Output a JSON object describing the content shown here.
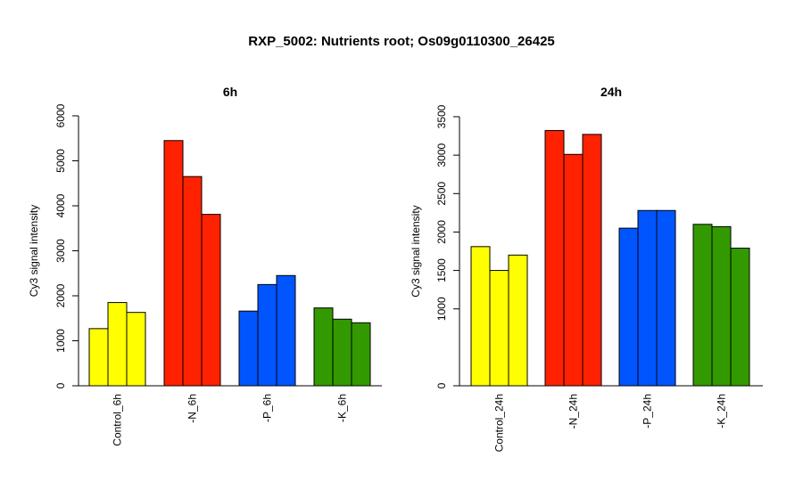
{
  "figure": {
    "title": "RXP_5002: Nutrients root; Os09g0110300_26425"
  },
  "chart_data": [
    {
      "type": "bar",
      "title": "6h",
      "xlabel": "",
      "ylabel": "Cy3 signal intensity",
      "ylim": [
        0,
        6000
      ],
      "yticks": [
        0,
        1000,
        2000,
        3000,
        4000,
        5000,
        6000
      ],
      "categories": [
        "Control_6h",
        "-N_6h",
        "-P_6h",
        "-K_6h"
      ],
      "group_colors": [
        "#ffff00",
        "#ff2200",
        "#0055ff",
        "#339900"
      ],
      "values": [
        [
          1270,
          1850,
          1630
        ],
        [
          5450,
          4650,
          3810
        ],
        [
          1660,
          2250,
          2450
        ],
        [
          1730,
          1480,
          1400
        ]
      ]
    },
    {
      "type": "bar",
      "title": "24h",
      "xlabel": "",
      "ylabel": "Cy3 signal intensity",
      "ylim": [
        0,
        3500
      ],
      "yticks": [
        0,
        1000,
        1500,
        2000,
        2500,
        3000,
        3500
      ],
      "categories": [
        "Control_24h",
        "-N_24h",
        "-P_24h",
        "-K_24h"
      ],
      "group_colors": [
        "#ffff00",
        "#ff2200",
        "#0055ff",
        "#339900"
      ],
      "values": [
        [
          1810,
          1500,
          1700
        ],
        [
          3320,
          3010,
          3270
        ],
        [
          2050,
          2280,
          2280
        ],
        [
          2100,
          2070,
          1790
        ]
      ]
    }
  ]
}
